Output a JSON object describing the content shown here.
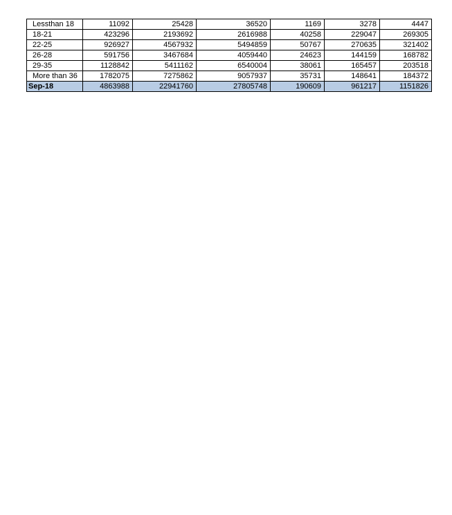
{
  "styles": {
    "highlight_bg": "#b8cce4",
    "border_color": "#000000",
    "text_color": "#000000",
    "page_bg": "#ffffff"
  },
  "table": {
    "rows": [
      {
        "label": "Lessthan 18",
        "values": [
          "11092",
          "25428",
          "36520",
          "1169",
          "3278",
          "4447"
        ]
      },
      {
        "label": "18-21",
        "values": [
          "423296",
          "2193692",
          "2616988",
          "40258",
          "229047",
          "269305"
        ]
      },
      {
        "label": "22-25",
        "values": [
          "926927",
          "4567932",
          "5494859",
          "50767",
          "270635",
          "321402"
        ]
      },
      {
        "label": "26-28",
        "values": [
          "591756",
          "3467684",
          "4059440",
          "24623",
          "144159",
          "168782"
        ]
      },
      {
        "label": "29-35",
        "values": [
          "1128842",
          "5411162",
          "6540004",
          "38061",
          "165457",
          "203518"
        ]
      },
      {
        "label": "More than 36",
        "values": [
          "1782075",
          "7275862",
          "9057937",
          "35731",
          "148641",
          "184372"
        ]
      }
    ],
    "total_row": {
      "label": "Sep-18",
      "values": [
        "4863988",
        "22941760",
        "27805748",
        "190609",
        "961217",
        "1151826"
      ]
    }
  }
}
